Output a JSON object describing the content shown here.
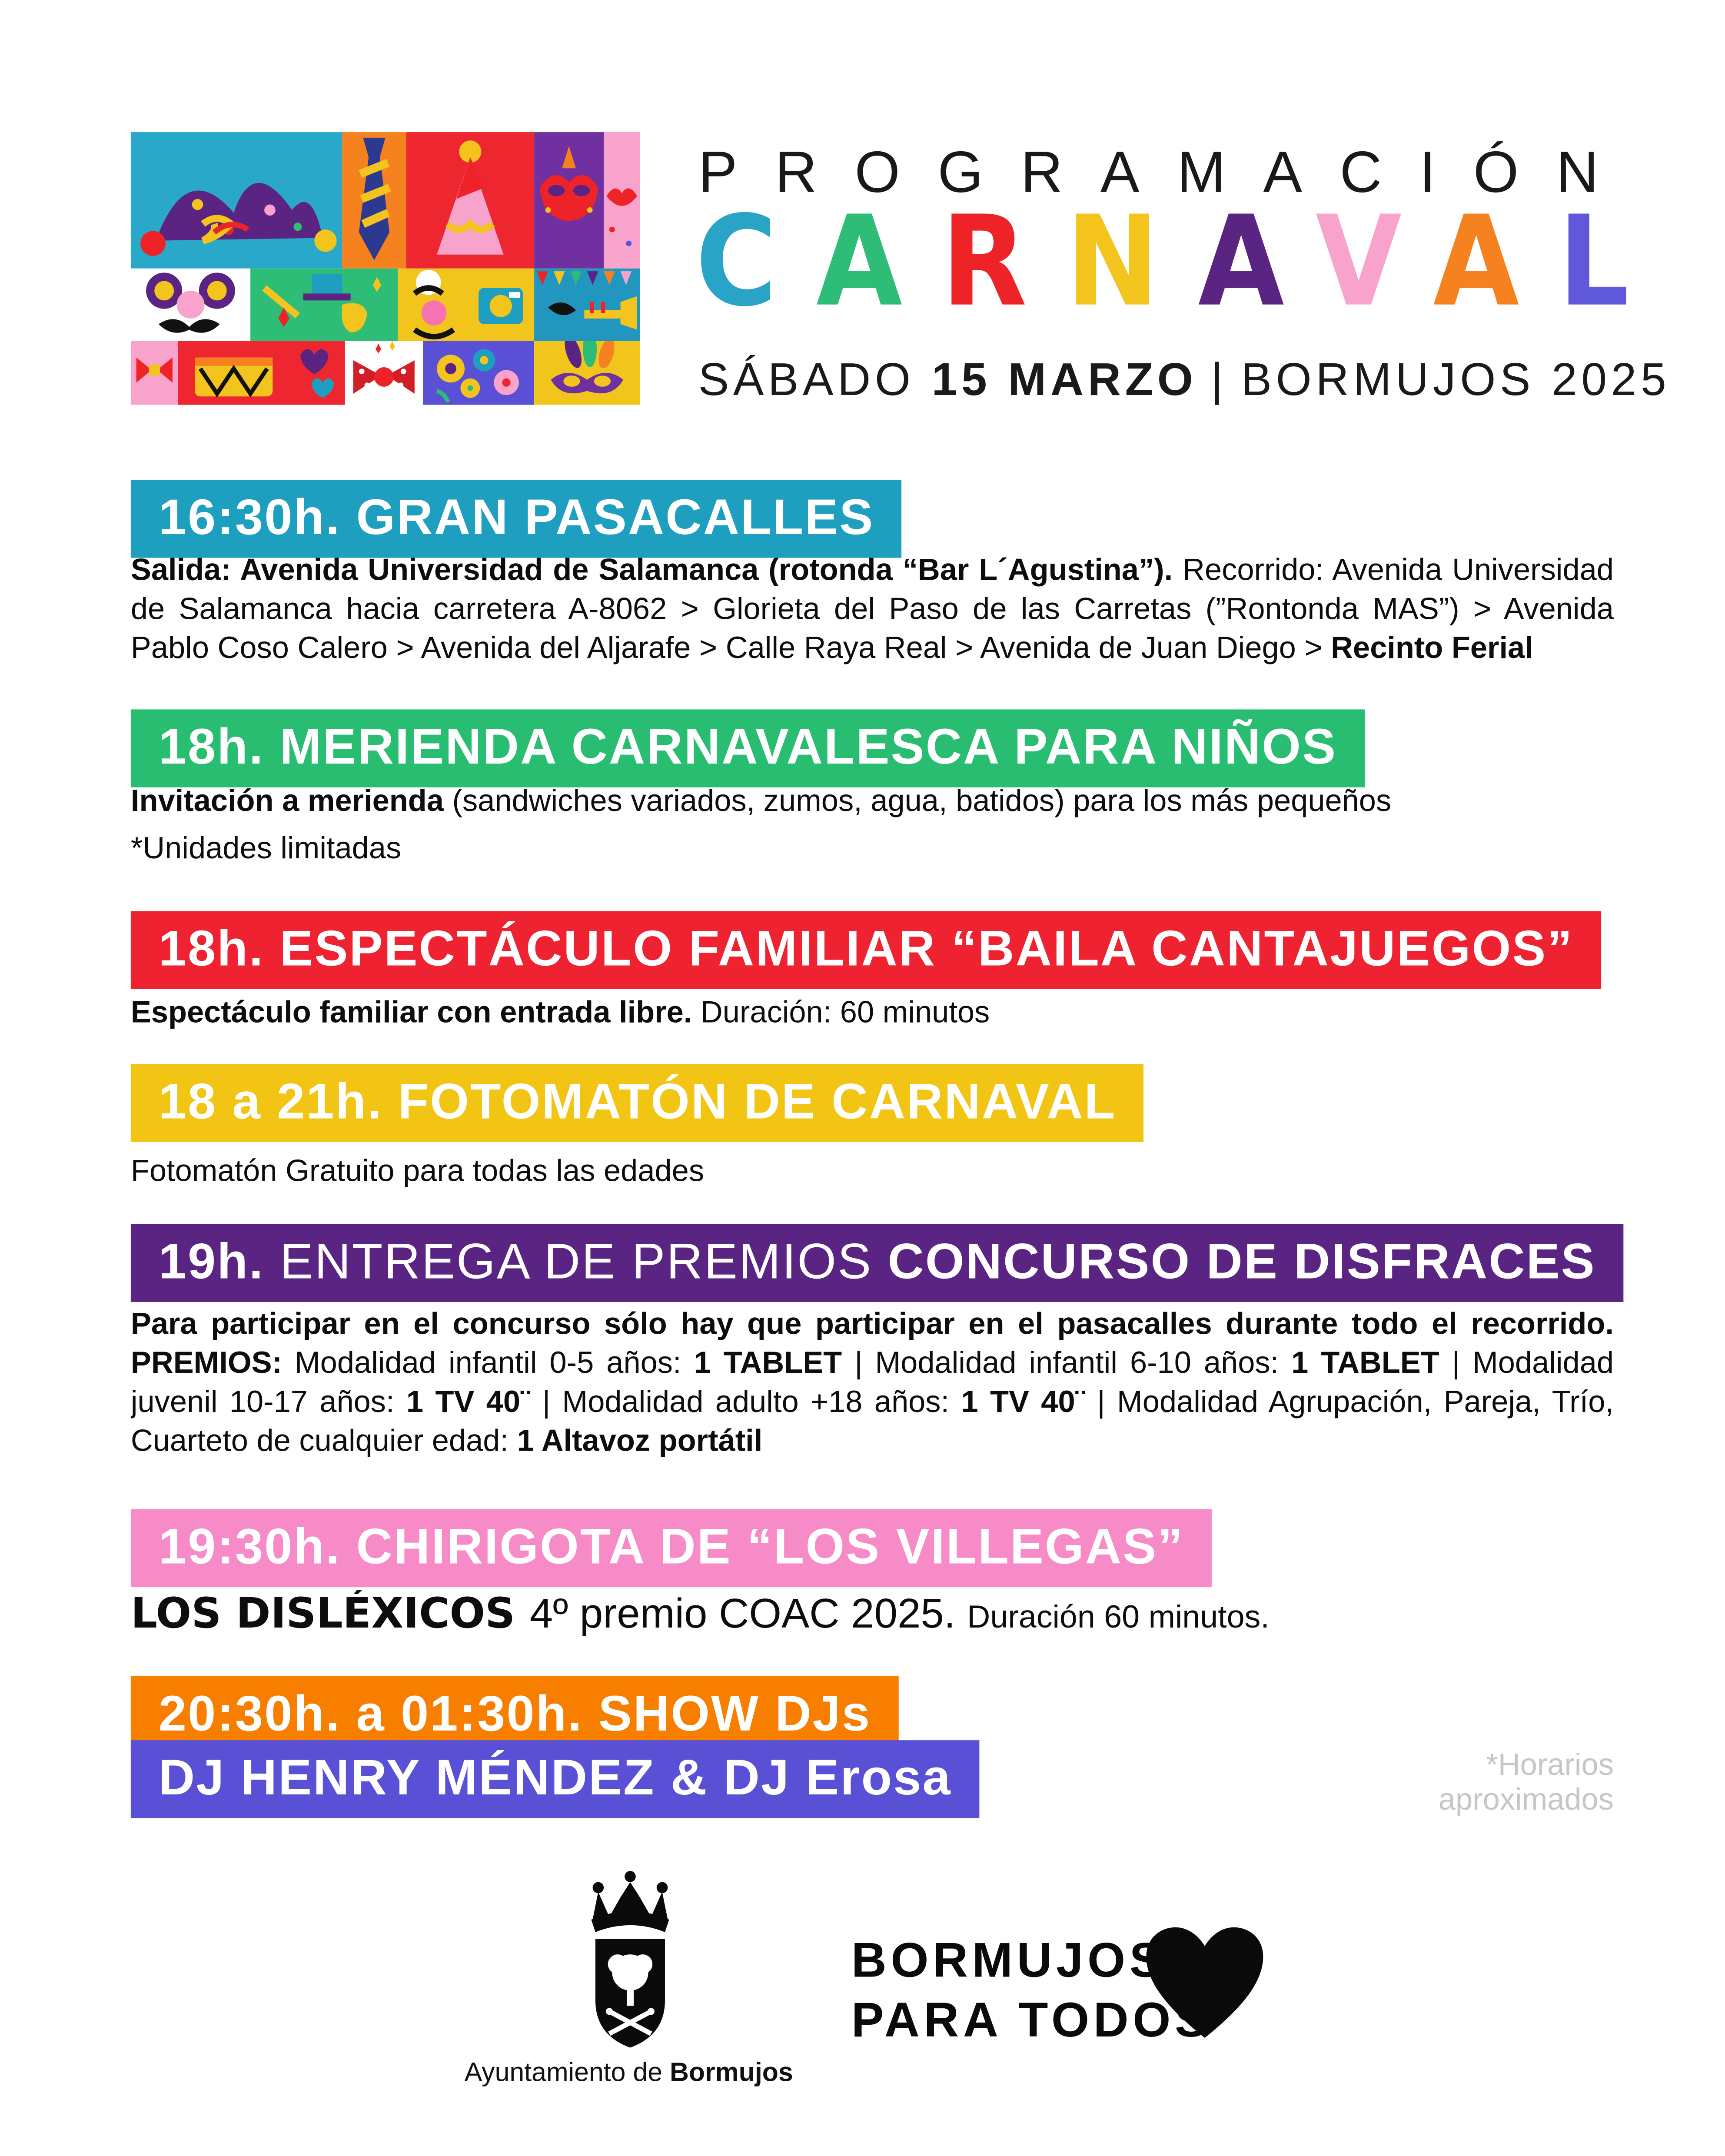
{
  "header": {
    "programacion": "PROGRAMACIÓN",
    "carnaval_letters": [
      {
        "ch": "C",
        "color": "#29A3C6"
      },
      {
        "ch": "A",
        "color": "#2EBD77"
      },
      {
        "ch": "R",
        "color": "#EE2328"
      },
      {
        "ch": "N",
        "color": "#F2C41D"
      },
      {
        "ch": "A",
        "color": "#5A2482"
      },
      {
        "ch": "V",
        "color": "#F7A3CC"
      },
      {
        "ch": "A",
        "color": "#F6821F"
      },
      {
        "ch": "L",
        "color": "#6058DA"
      }
    ],
    "subtitle": [
      {
        "t": "SÁBADO ",
        "b": false
      },
      {
        "t": "15 MARZO",
        "b": true
      },
      {
        "t": "|",
        "cls": "sep"
      },
      {
        "t": "BORMUJOS 2025",
        "b": false
      }
    ]
  },
  "sections": [
    {
      "color": "#1E9FC0",
      "banner": [
        {
          "t": "16:30h. GRAN PASACALLES",
          "b": true
        }
      ],
      "paragraphs": [
        [
          {
            "t": "Salida: Avenida Universidad de Salamanca (rotonda “Bar L´Agustina”). ",
            "b": true
          },
          {
            "t": "Recorrido: Avenida Universidad de Salamanca hacia carretera A-8062 > Glorieta del Paso de las Carretas (”Rontonda MAS”) > Avenida Pablo Coso Calero > Avenida del Aljarafe > Calle Raya Real > Avenida de Juan Diego > ",
            "b": false
          },
          {
            "t": "Recinto Ferial",
            "b": true
          }
        ]
      ]
    },
    {
      "color": "#29BD72",
      "banner": [
        {
          "t": "18h. MERIENDA CARNAVALESCA PARA NIÑOS",
          "b": true
        }
      ],
      "paragraphs": [
        [
          {
            "t": "Invitación a merienda ",
            "b": true
          },
          {
            "t": "(sandwiches variados, zumos, agua, batidos) para los más pequeños",
            "b": false
          }
        ],
        [
          {
            "t": "*Unidades limitadas",
            "b": false
          }
        ]
      ]
    },
    {
      "color": "#EE2230",
      "banner": [
        {
          "t": "18h. ESPECTÁCULO FAMILIAR “BAILA CANTAJUEGOS”",
          "b": true
        }
      ],
      "paragraphs": [
        [
          {
            "t": "Espectáculo familiar con entrada libre. ",
            "b": true
          },
          {
            "t": "Duración: 60 minutos",
            "b": false
          }
        ]
      ]
    },
    {
      "color": "#F2C413",
      "banner": [
        {
          "t": "18 a 21h. FOTOMATÓN DE CARNAVAL",
          "b": true
        }
      ],
      "paragraphs": [
        [
          {
            "t": "Fotomatón Gratuito para todas las edades",
            "b": false
          }
        ]
      ]
    },
    {
      "color": "#5A2482",
      "banner": [
        {
          "t": "19h. ",
          "b": true
        },
        {
          "t": "ENTREGA DE PREMIOS ",
          "cls": "rg"
        },
        {
          "t": "CONCURSO DE DISFRACES",
          "b": true
        }
      ],
      "paragraphs": [
        [
          {
            "t": "Para participar en el concurso sólo hay que participar en el pasacalles durante todo el recorrido. PREMIOS: ",
            "b": true
          },
          {
            "t": "Modalidad infantil 0-5 años: ",
            "b": false
          },
          {
            "t": "1 TABLET",
            "b": true
          },
          {
            "t": " | Modalidad infantil 6-10 años: ",
            "b": false
          },
          {
            "t": "1 TABLET",
            "b": true
          },
          {
            "t": " | Modalidad juvenil 10-17 años: ",
            "b": false
          },
          {
            "t": "1 TV 40¨",
            "b": true
          },
          {
            "t": " | Modalidad adulto +18 años: ",
            "b": false
          },
          {
            "t": "1 TV 40¨",
            "b": true
          },
          {
            "t": " | Modalidad Agrupación, Pareja, Trío, Cuarteto de cualquier edad: ",
            "b": false
          },
          {
            "t": "1 Altavoz portátil",
            "b": true
          }
        ]
      ]
    },
    {
      "color": "#F78BC8",
      "banner": [
        {
          "t": "19:30h. CHIRIGOTA DE “LOS VILLEGAS”",
          "b": true
        }
      ],
      "paragraphs": [
        [
          {
            "t": "LOS DISLÉXICOS ",
            "cls": "xb lg"
          },
          {
            "t": "4º premio COAC 2025. ",
            "cls": "lg"
          },
          {
            "t": "Duración 60 minutos.",
            "cls": "sm"
          }
        ]
      ]
    },
    {
      "color": "#F87E00",
      "banner": [
        {
          "t": "20:30h. a 01:30h. SHOW DJs",
          "b": true
        }
      ],
      "paragraphs": []
    },
    {
      "color": "#5A50D5",
      "banner": [
        {
          "t": "DJ HENRY MÉNDEZ & DJ Erosa",
          "b": true
        }
      ],
      "paragraphs": [],
      "note_line1": "*Horarios",
      "note_line2": "aproximados"
    }
  ],
  "footer": {
    "caption": [
      {
        "t": "Ayuntamiento de ",
        "b": false
      },
      {
        "t": "Bormujos",
        "b": true
      }
    ],
    "brand_line1": "BORMUJOS",
    "brand_line2": "PARA TODOS",
    "heart_icon": "heart",
    "crest_icon": "bormujos-coat-of-arms"
  }
}
